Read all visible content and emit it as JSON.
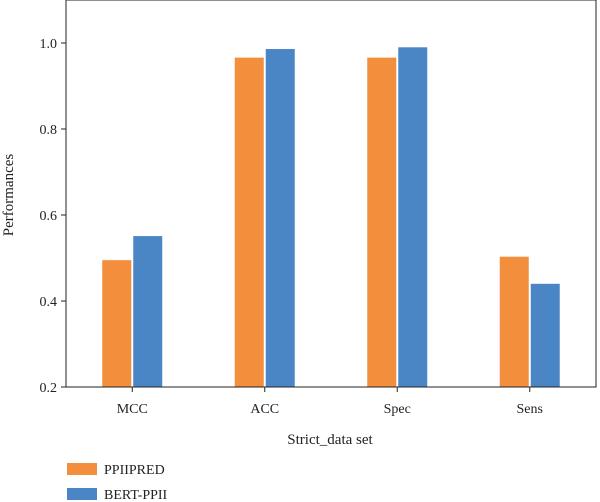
{
  "chart_data": {
    "type": "bar",
    "categories": [
      "MCC",
      "ACC",
      "Spec",
      "Sens"
    ],
    "series": [
      {
        "name": "PPIIPRED",
        "values": [
          0.495,
          0.966,
          0.966,
          0.503
        ],
        "color": "#F28E3C"
      },
      {
        "name": "BERT-PPII",
        "values": [
          0.551,
          0.986,
          0.99,
          0.44
        ],
        "color": "#4A86C5"
      }
    ],
    "xlabel": "Strict_data set",
    "ylabel": "Performances",
    "ylim": [
      0.2,
      1.1
    ],
    "yticks": [
      0.2,
      0.4,
      0.6,
      0.8,
      1.0
    ],
    "ytick_labels": [
      "0.2",
      "0.4",
      "0.6",
      "0.8",
      "1.0"
    ],
    "grid": false,
    "legend_position": "bottom-left"
  }
}
